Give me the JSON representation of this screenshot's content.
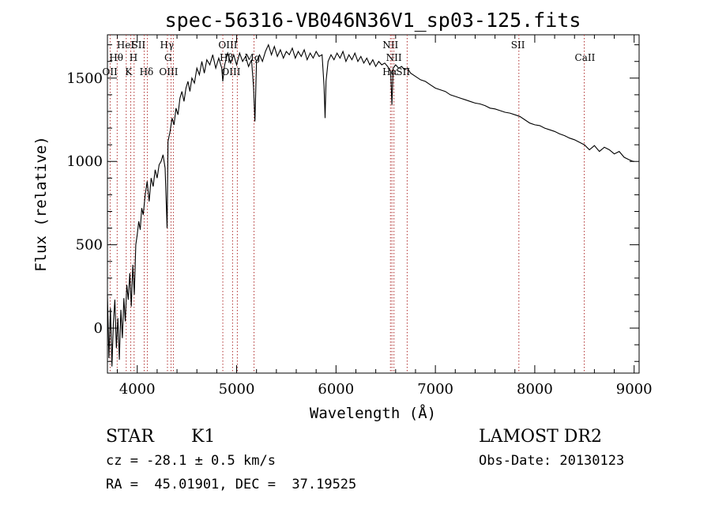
{
  "chart_data": {
    "type": "line",
    "title": "spec-56316-VB046N36V1_sp03-125.fits",
    "xlabel": "Wavelength (Å)",
    "ylabel": "Flux (relative)",
    "xlim": [
      3700,
      9050
    ],
    "ylim": [
      -270,
      1760
    ],
    "xticks": [
      4000,
      5000,
      6000,
      7000,
      8000,
      9000
    ],
    "yticks": [
      0,
      500,
      1000,
      1500
    ],
    "grid": false,
    "line_color": "#000000",
    "marker_color": "#b03030",
    "spectrum": [
      [
        3700,
        200
      ],
      [
        3715,
        -180
      ],
      [
        3730,
        120
      ],
      [
        3745,
        -230
      ],
      [
        3760,
        30
      ],
      [
        3775,
        170
      ],
      [
        3790,
        -120
      ],
      [
        3805,
        60
      ],
      [
        3820,
        -190
      ],
      [
        3835,
        110
      ],
      [
        3850,
        -60
      ],
      [
        3865,
        180
      ],
      [
        3880,
        40
      ],
      [
        3895,
        260
      ],
      [
        3910,
        170
      ],
      [
        3925,
        330
      ],
      [
        3940,
        130
      ],
      [
        3955,
        380
      ],
      [
        3970,
        200
      ],
      [
        3985,
        500
      ],
      [
        4000,
        560
      ],
      [
        4015,
        640
      ],
      [
        4030,
        590
      ],
      [
        4045,
        720
      ],
      [
        4060,
        680
      ],
      [
        4080,
        800
      ],
      [
        4100,
        880
      ],
      [
        4120,
        760
      ],
      [
        4140,
        900
      ],
      [
        4160,
        850
      ],
      [
        4180,
        950
      ],
      [
        4200,
        900
      ],
      [
        4220,
        980
      ],
      [
        4240,
        1000
      ],
      [
        4260,
        1040
      ],
      [
        4280,
        960
      ],
      [
        4300,
        600
      ],
      [
        4310,
        1120
      ],
      [
        4330,
        1180
      ],
      [
        4350,
        1260
      ],
      [
        4370,
        1220
      ],
      [
        4390,
        1320
      ],
      [
        4410,
        1280
      ],
      [
        4430,
        1380
      ],
      [
        4450,
        1420
      ],
      [
        4470,
        1360
      ],
      [
        4490,
        1440
      ],
      [
        4510,
        1480
      ],
      [
        4530,
        1420
      ],
      [
        4550,
        1500
      ],
      [
        4575,
        1470
      ],
      [
        4600,
        1560
      ],
      [
        4625,
        1520
      ],
      [
        4650,
        1600
      ],
      [
        4675,
        1530
      ],
      [
        4700,
        1610
      ],
      [
        4730,
        1580
      ],
      [
        4760,
        1640
      ],
      [
        4790,
        1560
      ],
      [
        4820,
        1620
      ],
      [
        4850,
        1560
      ],
      [
        4861,
        1480
      ],
      [
        4880,
        1580
      ],
      [
        4910,
        1650
      ],
      [
        4940,
        1590
      ],
      [
        4970,
        1640
      ],
      [
        5000,
        1580
      ],
      [
        5030,
        1650
      ],
      [
        5060,
        1600
      ],
      [
        5090,
        1630
      ],
      [
        5120,
        1570
      ],
      [
        5150,
        1610
      ],
      [
        5170,
        1450
      ],
      [
        5184,
        1240
      ],
      [
        5200,
        1600
      ],
      [
        5230,
        1640
      ],
      [
        5260,
        1600
      ],
      [
        5290,
        1660
      ],
      [
        5320,
        1700
      ],
      [
        5350,
        1640
      ],
      [
        5380,
        1690
      ],
      [
        5410,
        1630
      ],
      [
        5440,
        1670
      ],
      [
        5470,
        1620
      ],
      [
        5500,
        1660
      ],
      [
        5530,
        1640
      ],
      [
        5560,
        1680
      ],
      [
        5590,
        1620
      ],
      [
        5620,
        1660
      ],
      [
        5650,
        1630
      ],
      [
        5680,
        1670
      ],
      [
        5710,
        1610
      ],
      [
        5740,
        1650
      ],
      [
        5770,
        1620
      ],
      [
        5800,
        1660
      ],
      [
        5830,
        1630
      ],
      [
        5860,
        1640
      ],
      [
        5880,
        1450
      ],
      [
        5890,
        1260
      ],
      [
        5900,
        1480
      ],
      [
        5920,
        1600
      ],
      [
        5950,
        1640
      ],
      [
        5980,
        1610
      ],
      [
        6010,
        1650
      ],
      [
        6040,
        1620
      ],
      [
        6070,
        1660
      ],
      [
        6100,
        1600
      ],
      [
        6130,
        1640
      ],
      [
        6160,
        1610
      ],
      [
        6190,
        1650
      ],
      [
        6220,
        1600
      ],
      [
        6250,
        1630
      ],
      [
        6280,
        1590
      ],
      [
        6310,
        1620
      ],
      [
        6340,
        1580
      ],
      [
        6370,
        1610
      ],
      [
        6400,
        1570
      ],
      [
        6430,
        1600
      ],
      [
        6460,
        1580
      ],
      [
        6490,
        1590
      ],
      [
        6520,
        1570
      ],
      [
        6550,
        1540
      ],
      [
        6563,
        1340
      ],
      [
        6575,
        1560
      ],
      [
        6600,
        1580
      ],
      [
        6630,
        1560
      ],
      [
        6660,
        1570
      ],
      [
        6690,
        1550
      ],
      [
        6720,
        1560
      ],
      [
        6750,
        1530
      ],
      [
        6800,
        1510
      ],
      [
        6850,
        1490
      ],
      [
        6900,
        1480
      ],
      [
        6950,
        1460
      ],
      [
        7000,
        1440
      ],
      [
        7050,
        1430
      ],
      [
        7100,
        1420
      ],
      [
        7150,
        1400
      ],
      [
        7200,
        1390
      ],
      [
        7250,
        1380
      ],
      [
        7300,
        1370
      ],
      [
        7350,
        1360
      ],
      [
        7400,
        1350
      ],
      [
        7450,
        1345
      ],
      [
        7500,
        1335
      ],
      [
        7550,
        1320
      ],
      [
        7600,
        1315
      ],
      [
        7650,
        1305
      ],
      [
        7700,
        1295
      ],
      [
        7750,
        1290
      ],
      [
        7800,
        1280
      ],
      [
        7850,
        1270
      ],
      [
        7900,
        1250
      ],
      [
        7950,
        1230
      ],
      [
        8000,
        1220
      ],
      [
        8050,
        1215
      ],
      [
        8100,
        1200
      ],
      [
        8150,
        1190
      ],
      [
        8200,
        1180
      ],
      [
        8250,
        1165
      ],
      [
        8300,
        1155
      ],
      [
        8350,
        1140
      ],
      [
        8400,
        1130
      ],
      [
        8450,
        1115
      ],
      [
        8500,
        1100
      ],
      [
        8550,
        1070
      ],
      [
        8600,
        1095
      ],
      [
        8650,
        1060
      ],
      [
        8700,
        1085
      ],
      [
        8750,
        1070
      ],
      [
        8800,
        1045
      ],
      [
        8850,
        1060
      ],
      [
        8900,
        1025
      ],
      [
        8950,
        1010
      ],
      [
        8990,
        1000
      ],
      [
        9000,
        1000
      ]
    ],
    "markers": [
      {
        "label": "OII",
        "wavelength": 3727,
        "row": 3,
        "dx": -10
      },
      {
        "label": "Hθ",
        "wavelength": 3798,
        "row": 2,
        "dx": -10
      },
      {
        "label": "HeI",
        "wavelength": 3889,
        "row": 1,
        "dx": -12
      },
      {
        "label": "K",
        "wavelength": 3934,
        "row": 3,
        "dx": -7
      },
      {
        "label": "H",
        "wavelength": 3968,
        "row": 2,
        "dx": -6
      },
      {
        "label": "SII",
        "wavelength": 4070,
        "row": 1,
        "dx": -16
      },
      {
        "label": "Hδ",
        "wavelength": 4102,
        "row": 3,
        "dx": -10
      },
      {
        "label": "Hγ",
        "wavelength": 4340,
        "row": 1,
        "dx": -14
      },
      {
        "label": "G",
        "wavelength": 4304,
        "row": 2,
        "dx": -4
      },
      {
        "label": "OIII",
        "wavelength": 4363,
        "row": 3,
        "dx": -18
      },
      {
        "label": "Hβ",
        "wavelength": 4861,
        "row": 2,
        "dx": -4
      },
      {
        "label": "OIII",
        "wavelength": 4959,
        "row": 3,
        "dx": -14
      },
      {
        "label": "OIII",
        "wavelength": 5007,
        "row": 1,
        "dx": -24
      },
      {
        "label": "Mg",
        "wavelength": 5175,
        "row": 2,
        "dx": -12
      },
      {
        "label": "NII",
        "wavelength": 6548,
        "row": 1,
        "dx": -10
      },
      {
        "label": "Hα",
        "wavelength": 6563,
        "row": 3,
        "dx": -12
      },
      {
        "label": "NII",
        "wavelength": 6583,
        "row": 2,
        "dx": -10
      },
      {
        "label": "SII",
        "wavelength": 6716,
        "row": 3,
        "dx": -14
      },
      {
        "label": "SII",
        "wavelength": 7840,
        "row": 1,
        "dx": -10
      },
      {
        "label": "CaII",
        "wavelength": 8498,
        "row": 2,
        "dx": -12
      }
    ]
  },
  "info": {
    "object_class": "STAR",
    "subclass": "K1",
    "survey": "LAMOST DR2",
    "redshift": "cz = -28.1 ± 0.5 km/s",
    "obs_date": "Obs-Date: 20130123",
    "coordinates": "RA =  45.01901, DEC =  37.19525"
  }
}
